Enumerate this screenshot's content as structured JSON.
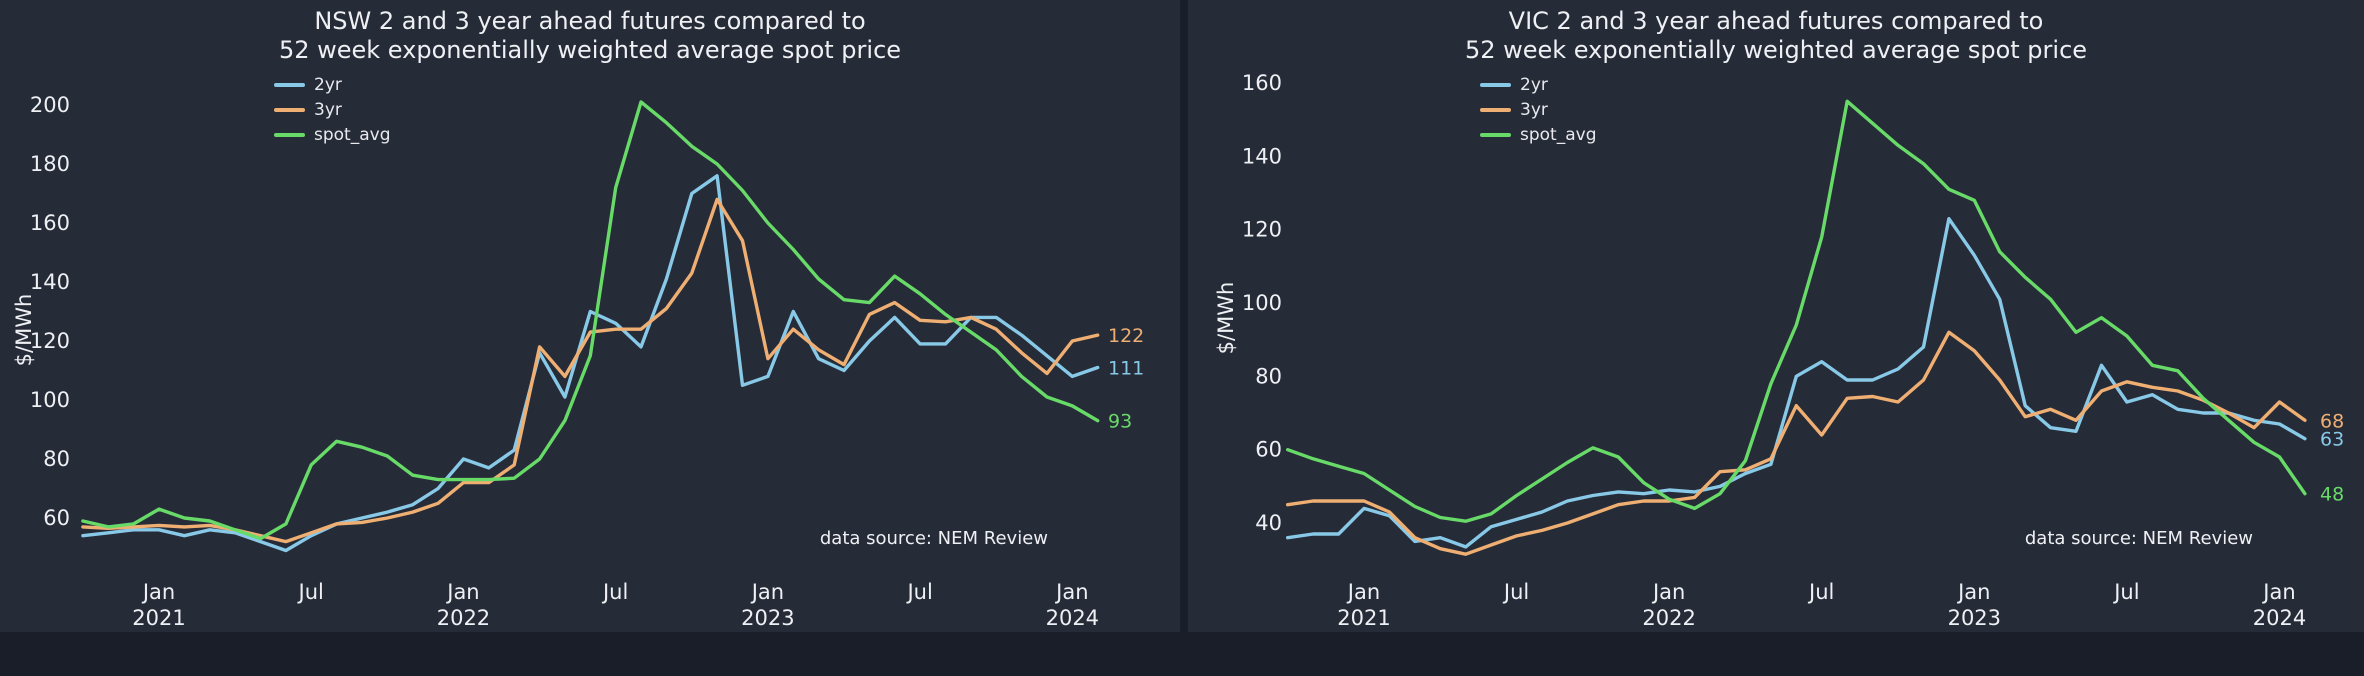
{
  "page": {
    "background": "#1a1e28",
    "panel_background": "#262b38",
    "text_color": "#eef0f3"
  },
  "chart_data": [
    {
      "type": "line",
      "region": "NSW",
      "title_lines": [
        "NSW 2 and 3 year ahead futures compared to",
        "52 week exponentially weighted average spot price"
      ],
      "ylabel": "$/MWh",
      "annotation": "data source: NEM Review",
      "legend_position": "top-left",
      "grid": false,
      "ylim": [
        45,
        215
      ],
      "yticks": [
        60,
        80,
        100,
        120,
        140,
        160,
        180,
        200
      ],
      "xticks": [
        {
          "index": 3,
          "label": "Jan",
          "year": "2021"
        },
        {
          "index": 9,
          "label": "Jul"
        },
        {
          "index": 15,
          "label": "Jan",
          "year": "2022"
        },
        {
          "index": 21,
          "label": "Jul"
        },
        {
          "index": 27,
          "label": "Jan",
          "year": "2023"
        },
        {
          "index": 33,
          "label": "Jul"
        },
        {
          "index": 39,
          "label": "Jan",
          "year": "2024"
        }
      ],
      "x_months": [
        "2020-10",
        "2020-11",
        "2020-12",
        "2021-01",
        "2021-02",
        "2021-03",
        "2021-04",
        "2021-05",
        "2021-06",
        "2021-07",
        "2021-08",
        "2021-09",
        "2021-10",
        "2021-11",
        "2021-12",
        "2022-01",
        "2022-02",
        "2022-03",
        "2022-04",
        "2022-05",
        "2022-06",
        "2022-07",
        "2022-08",
        "2022-09",
        "2022-10",
        "2022-11",
        "2022-12",
        "2023-01",
        "2023-02",
        "2023-03",
        "2023-04",
        "2023-05",
        "2023-06",
        "2023-07",
        "2023-08",
        "2023-09",
        "2023-10",
        "2023-11",
        "2023-12",
        "2024-01",
        "2024-02"
      ],
      "series": [
        {
          "name": "2yr",
          "color": "#88c9e8",
          "end_label": "111",
          "values": [
            54,
            55,
            56,
            56,
            54,
            56,
            55,
            52,
            49,
            54,
            58,
            60,
            62,
            64.5,
            70,
            80,
            77,
            83,
            116,
            101,
            130,
            126,
            118,
            141,
            170,
            176,
            105,
            108,
            130,
            114,
            110,
            120,
            128,
            119,
            119,
            128,
            128,
            122,
            115,
            108,
            111
          ]
        },
        {
          "name": "3yr",
          "color": "#efaf72",
          "end_label": "122",
          "values": [
            57,
            56.5,
            57,
            57.5,
            57,
            57.5,
            56,
            54,
            52,
            55,
            58,
            58.5,
            60,
            62,
            65,
            72,
            72,
            78,
            118,
            108,
            123,
            124,
            124,
            131,
            143,
            168,
            154,
            114,
            124,
            117,
            112,
            129,
            133,
            127,
            126.5,
            128,
            124,
            116,
            109,
            120,
            122
          ]
        },
        {
          "name": "spot_avg",
          "color": "#68da68",
          "end_label": "93",
          "values": [
            59,
            57,
            58,
            63,
            60,
            59,
            56,
            53,
            58,
            78,
            86,
            84,
            81,
            74.5,
            73,
            73,
            73,
            73.5,
            80,
            93,
            115,
            172,
            201,
            194,
            186,
            180,
            171,
            160,
            151,
            141,
            134,
            133,
            142,
            136,
            129,
            123,
            117,
            108,
            101,
            98,
            93
          ]
        }
      ]
    },
    {
      "type": "line",
      "region": "VIC",
      "title_lines": [
        "VIC 2 and 3 year ahead futures compared to",
        "52 week exponentially weighted average spot price"
      ],
      "ylabel": "$/MWh",
      "annotation": "data source: NEM Review",
      "legend_position": "top-left",
      "grid": false,
      "ylim": [
        28,
        168
      ],
      "yticks": [
        40,
        60,
        80,
        100,
        120,
        140,
        160
      ],
      "xticks": [
        {
          "index": 3,
          "label": "Jan",
          "year": "2021"
        },
        {
          "index": 9,
          "label": "Jul"
        },
        {
          "index": 15,
          "label": "Jan",
          "year": "2022"
        },
        {
          "index": 21,
          "label": "Jul"
        },
        {
          "index": 27,
          "label": "Jan",
          "year": "2023"
        },
        {
          "index": 33,
          "label": "Jul"
        },
        {
          "index": 39,
          "label": "Jan",
          "year": "2024"
        }
      ],
      "x_months": [
        "2020-10",
        "2020-11",
        "2020-12",
        "2021-01",
        "2021-02",
        "2021-03",
        "2021-04",
        "2021-05",
        "2021-06",
        "2021-07",
        "2021-08",
        "2021-09",
        "2021-10",
        "2021-11",
        "2021-12",
        "2022-01",
        "2022-02",
        "2022-03",
        "2022-04",
        "2022-05",
        "2022-06",
        "2022-07",
        "2022-08",
        "2022-09",
        "2022-10",
        "2022-11",
        "2022-12",
        "2023-01",
        "2023-02",
        "2023-03",
        "2023-04",
        "2023-05",
        "2023-06",
        "2023-07",
        "2023-08",
        "2023-09",
        "2023-10",
        "2023-11",
        "2023-12",
        "2024-01",
        "2024-02"
      ],
      "series": [
        {
          "name": "2yr",
          "color": "#88c9e8",
          "end_label": "63",
          "values": [
            36,
            37,
            37,
            44,
            42,
            35,
            36,
            33.5,
            39,
            41,
            43,
            46,
            47.5,
            48.5,
            48,
            49,
            48.5,
            50,
            53.5,
            56,
            80,
            84,
            79,
            79,
            82,
            88,
            123,
            113,
            101,
            72,
            66,
            65,
            83,
            73,
            75,
            71,
            70,
            70,
            68,
            67,
            63
          ]
        },
        {
          "name": "3yr",
          "color": "#efaf72",
          "end_label": "68",
          "values": [
            45,
            46,
            46,
            46,
            43,
            36,
            33,
            31.5,
            34,
            36.5,
            38,
            40,
            42.5,
            45,
            46,
            46,
            47,
            54,
            54.5,
            57.5,
            72,
            64,
            74,
            74.5,
            73,
            79,
            92,
            87,
            79,
            69,
            71,
            68,
            76,
            78.5,
            77,
            76,
            73.5,
            70,
            66,
            73,
            68
          ]
        },
        {
          "name": "spot_avg",
          "color": "#68da68",
          "end_label": "48",
          "values": [
            60,
            57.5,
            55.5,
            53.5,
            49,
            44.5,
            41.5,
            40.5,
            42.5,
            47.5,
            52,
            56.5,
            60.5,
            58,
            51,
            46.5,
            44,
            48,
            57,
            78,
            94,
            118,
            155,
            149,
            143,
            138,
            131,
            128,
            114,
            107,
            101,
            92,
            96,
            91,
            83,
            81.5,
            74,
            68,
            62,
            58,
            48
          ]
        }
      ]
    }
  ]
}
